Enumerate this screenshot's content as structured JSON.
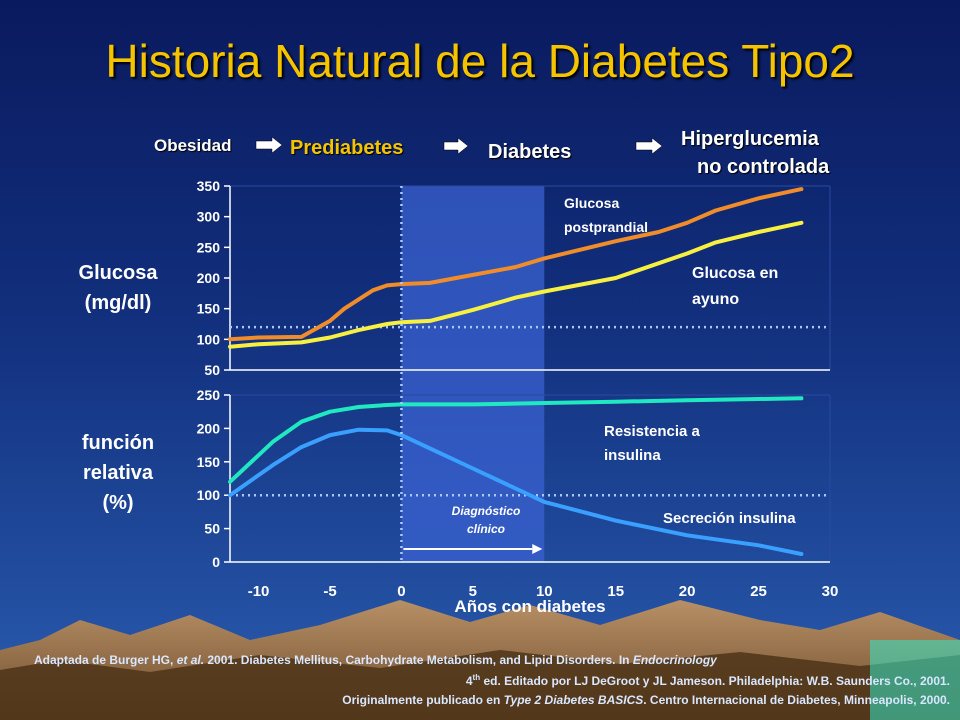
{
  "title": "Historia Natural de la Diabetes Tipo2",
  "stages": {
    "s1": "Obesidad",
    "s2": "Prediabetes",
    "s3": "Diabetes",
    "s4a": "Hiperglucemia",
    "s4b": "no controlada"
  },
  "panel1_ylabel": [
    "Glucosa",
    "(mg/dl)"
  ],
  "panel2_ylabel": [
    "función",
    "relativa",
    "(%)"
  ],
  "diagnosis_label": [
    "Diagnóstico",
    "clínico"
  ],
  "footer": {
    "line1_pre": "Adaptada de Burger HG, ",
    "line1_etal": "et al.",
    "line1_post": " 2001. Diabetes Mellitus, Carbohydrate Metabolism, and Lipid Disorders. In ",
    "line1_book": "Endocrinology",
    "line2_sup": "th",
    "line2_post": " ed. Editado por LJ DeGroot y JL Jameson. Philadelphia: W.B. Saunders Co., 2001.",
    "line2_num": "4",
    "line3_pre": "Originalmente publicado en ",
    "line3_book": "Type 2 Diabetes BASICS",
    "line3_post": ". Centro Internacional de Diabetes, Minneapolis, 2000."
  },
  "colors": {
    "title": "#f5c400",
    "postprandial": "#f08c2a",
    "fasting": "#f8f040",
    "resistance": "#20e8c0",
    "secretion": "#3aa0ff",
    "dotted": "#a8c8ff",
    "highlight": "#3a62d0"
  },
  "chart_data": [
    {
      "type": "line",
      "title": "",
      "xlabel": "Años con diabetes",
      "ylabel": "Glucosa (mg/dl)",
      "xlim": [
        -12,
        30
      ],
      "ylim": [
        50,
        350
      ],
      "yticks": [
        50,
        100,
        150,
        200,
        250,
        300,
        350
      ],
      "xticks": [
        -10,
        -5,
        0,
        5,
        10,
        15,
        20,
        25,
        30
      ],
      "reference_line_y": 120,
      "series": [
        {
          "name": "Glucosa postprandial",
          "label_lines": [
            "Glucosa",
            "postprandial"
          ],
          "color": "#f08c2a",
          "x": [
            -12,
            -10,
            -7,
            -5,
            -4,
            -2,
            -1,
            0,
            2,
            5,
            8,
            10,
            15,
            18,
            20,
            22,
            25,
            28
          ],
          "y": [
            100,
            103,
            104,
            130,
            150,
            180,
            188,
            190,
            192,
            205,
            218,
            232,
            260,
            275,
            290,
            310,
            330,
            345
          ]
        },
        {
          "name": "Glucosa en ayuno",
          "label_lines": [
            "Glucosa en",
            "ayuno"
          ],
          "color": "#f8f040",
          "x": [
            -12,
            -10,
            -7,
            -5,
            -3,
            -1,
            0,
            2,
            5,
            8,
            10,
            15,
            20,
            22,
            25,
            28
          ],
          "y": [
            88,
            92,
            95,
            103,
            115,
            125,
            128,
            130,
            148,
            168,
            178,
            200,
            240,
            258,
            275,
            290
          ]
        }
      ]
    },
    {
      "type": "line",
      "title": "",
      "xlabel": "Años con diabetes",
      "ylabel": "función relativa (%)",
      "xlim": [
        -12,
        30
      ],
      "ylim": [
        0,
        250
      ],
      "yticks": [
        0,
        50,
        100,
        150,
        200,
        250
      ],
      "xticks": [
        -10,
        -5,
        0,
        5,
        10,
        15,
        20,
        25,
        30
      ],
      "reference_line_y": 100,
      "series": [
        {
          "name": "Resistencia a insulina",
          "label_lines": [
            "Resistencia a",
            "insulina"
          ],
          "color": "#20e8c0",
          "x": [
            -12,
            -9,
            -7,
            -5,
            -3,
            -1,
            0,
            5,
            10,
            15,
            20,
            25,
            28
          ],
          "y": [
            120,
            180,
            210,
            225,
            232,
            235,
            236,
            236,
            238,
            240,
            242,
            244,
            245
          ]
        },
        {
          "name": "Secreción insulina",
          "label_lines": [
            "Secreción insulina"
          ],
          "color": "#3aa0ff",
          "x": [
            -12,
            -9,
            -7,
            -5,
            -3,
            -1,
            0,
            2,
            5,
            8,
            10,
            15,
            20,
            25,
            28
          ],
          "y": [
            100,
            145,
            172,
            190,
            198,
            197,
            190,
            170,
            140,
            110,
            90,
            62,
            40,
            25,
            12
          ]
        }
      ]
    }
  ]
}
